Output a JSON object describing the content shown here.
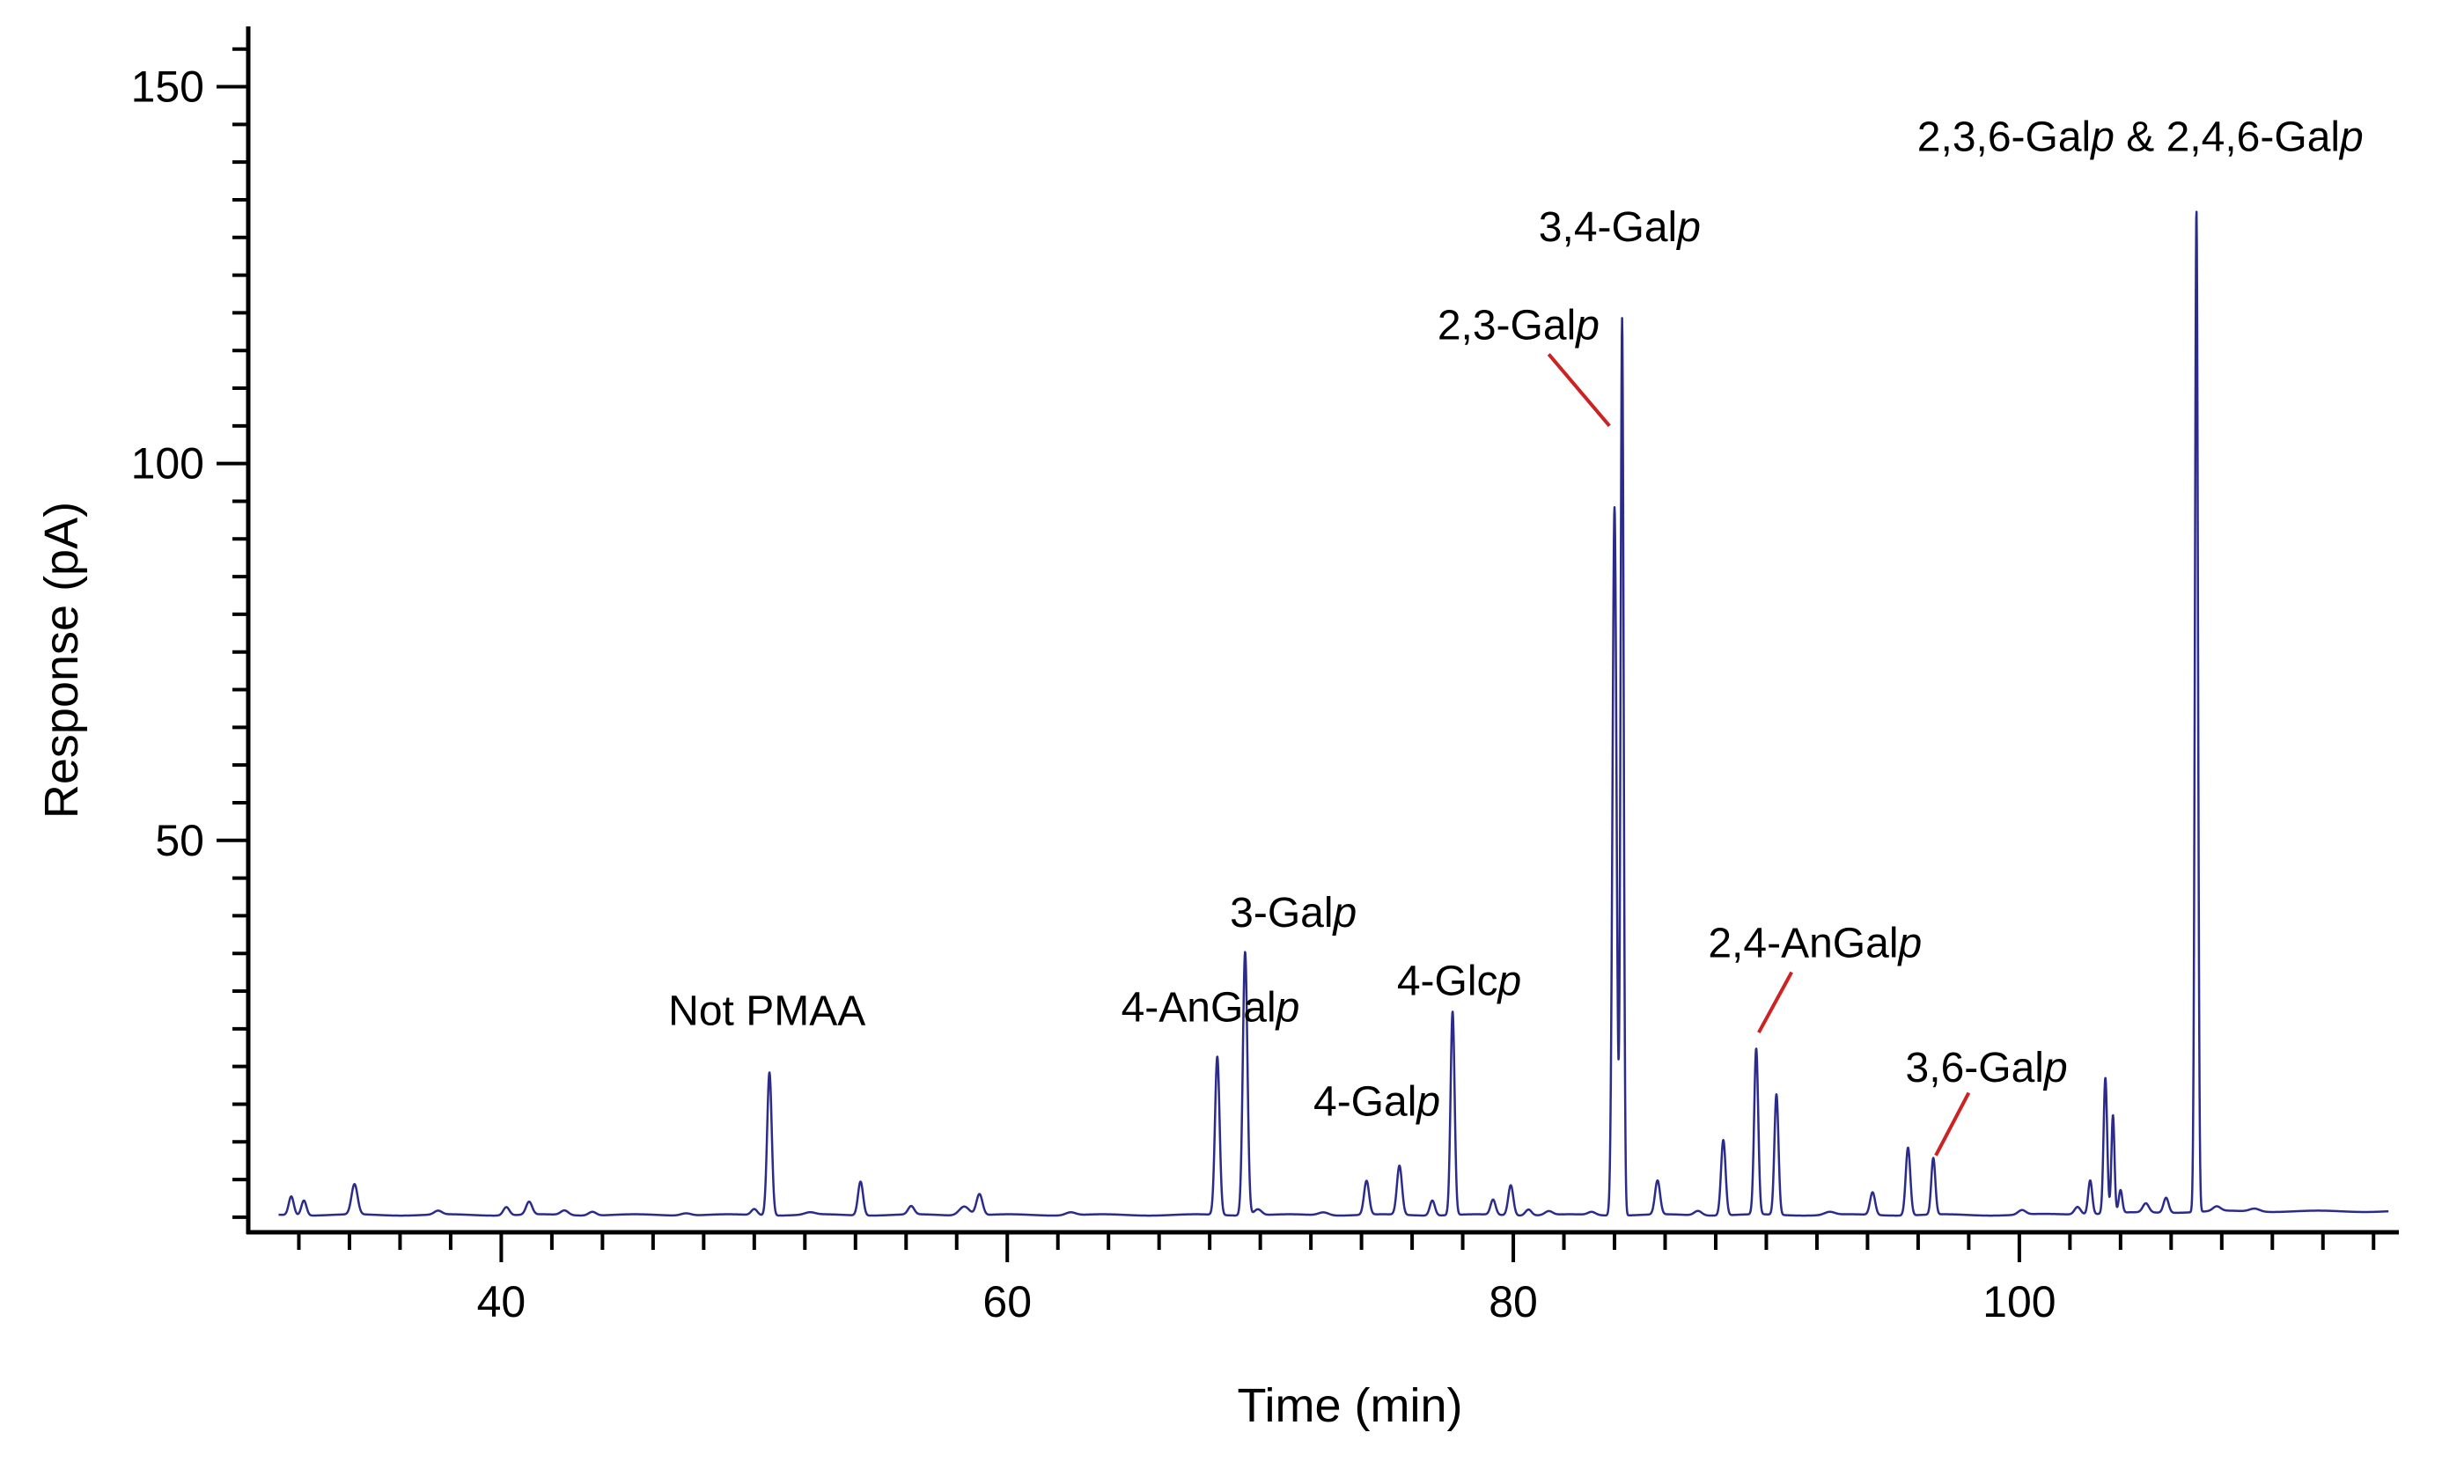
{
  "chart_data": {
    "type": "line",
    "xlabel": "Time (min)",
    "ylabel": "Response (pA)",
    "xlim": [
      30,
      115
    ],
    "ylim": [
      -2,
      158
    ],
    "x_ticks": [
      40,
      60,
      80,
      100
    ],
    "y_ticks": [
      50,
      100,
      150
    ],
    "x_minor_step": 2,
    "y_minor_step": 5,
    "grid": false,
    "line_color": "#2b2b8c",
    "leader_color": "#cc2222",
    "baseline": 0.3,
    "peaks": [
      {
        "x": 31.7,
        "h": 2.5,
        "w": 0.1
      },
      {
        "x": 32.2,
        "h": 2.0,
        "w": 0.1
      },
      {
        "x": 34.2,
        "h": 4.0,
        "w": 0.12
      },
      {
        "x": 37.5,
        "h": 0.5,
        "w": 0.15
      },
      {
        "x": 40.2,
        "h": 1.1,
        "w": 0.12
      },
      {
        "x": 41.1,
        "h": 1.7,
        "w": 0.12
      },
      {
        "x": 42.5,
        "h": 0.6,
        "w": 0.15
      },
      {
        "x": 43.6,
        "h": 0.5,
        "w": 0.15
      },
      {
        "x": 47.3,
        "h": 0.3,
        "w": 0.2
      },
      {
        "x": 50.0,
        "h": 0.8,
        "w": 0.12
      },
      {
        "x": 50.6,
        "h": 19.0,
        "w": 0.09
      },
      {
        "x": 52.2,
        "h": 0.3,
        "w": 0.2
      },
      {
        "x": 54.2,
        "h": 4.5,
        "w": 0.1
      },
      {
        "x": 56.2,
        "h": 1.1,
        "w": 0.12
      },
      {
        "x": 58.3,
        "h": 1.2,
        "w": 0.2
      },
      {
        "x": 58.9,
        "h": 2.8,
        "w": 0.12
      },
      {
        "x": 62.5,
        "h": 0.4,
        "w": 0.2
      },
      {
        "x": 68.3,
        "h": 21.0,
        "w": 0.09
      },
      {
        "x": 69.4,
        "h": 35.0,
        "w": 0.09
      },
      {
        "x": 69.9,
        "h": 0.8,
        "w": 0.15
      },
      {
        "x": 72.5,
        "h": 0.4,
        "w": 0.2
      },
      {
        "x": 74.2,
        "h": 4.5,
        "w": 0.1
      },
      {
        "x": 75.5,
        "h": 6.5,
        "w": 0.1
      },
      {
        "x": 76.8,
        "h": 2.0,
        "w": 0.1
      },
      {
        "x": 77.6,
        "h": 27.0,
        "w": 0.08
      },
      {
        "x": 79.2,
        "h": 2.0,
        "w": 0.1
      },
      {
        "x": 79.9,
        "h": 4.0,
        "w": 0.1
      },
      {
        "x": 80.6,
        "h": 0.8,
        "w": 0.12
      },
      {
        "x": 81.4,
        "h": 0.5,
        "w": 0.15
      },
      {
        "x": 83.1,
        "h": 0.4,
        "w": 0.15
      },
      {
        "x": 84.0,
        "h": 94.0,
        "w": 0.08
      },
      {
        "x": 84.3,
        "h": 119.0,
        "w": 0.06
      },
      {
        "x": 85.7,
        "h": 4.5,
        "w": 0.1
      },
      {
        "x": 87.3,
        "h": 0.6,
        "w": 0.15
      },
      {
        "x": 88.3,
        "h": 10.0,
        "w": 0.09
      },
      {
        "x": 89.6,
        "h": 22.0,
        "w": 0.08
      },
      {
        "x": 90.4,
        "h": 16.0,
        "w": 0.08
      },
      {
        "x": 92.5,
        "h": 0.4,
        "w": 0.2
      },
      {
        "x": 94.2,
        "h": 3.0,
        "w": 0.1
      },
      {
        "x": 95.6,
        "h": 9.0,
        "w": 0.09
      },
      {
        "x": 96.6,
        "h": 7.5,
        "w": 0.08
      },
      {
        "x": 100.1,
        "h": 0.6,
        "w": 0.15
      },
      {
        "x": 102.3,
        "h": 1.0,
        "w": 0.12
      },
      {
        "x": 102.8,
        "h": 4.5,
        "w": 0.08
      },
      {
        "x": 103.4,
        "h": 18.0,
        "w": 0.07
      },
      {
        "x": 103.7,
        "h": 13.0,
        "w": 0.06
      },
      {
        "x": 104.0,
        "h": 3.0,
        "w": 0.07
      },
      {
        "x": 105.0,
        "h": 1.2,
        "w": 0.12
      },
      {
        "x": 105.8,
        "h": 2.0,
        "w": 0.1
      },
      {
        "x": 107.0,
        "h": 133.0,
        "w": 0.06
      },
      {
        "x": 107.8,
        "h": 0.6,
        "w": 0.15
      },
      {
        "x": 109.3,
        "h": 0.4,
        "w": 0.2
      }
    ],
    "annotations": [
      {
        "id": "not-pmaa",
        "parts": [
          {
            "t": "Not PMAA",
            "i": false
          }
        ],
        "x": 50.5,
        "y": 25.5,
        "anchor": "middle"
      },
      {
        "id": "4-angalp",
        "parts": [
          {
            "t": "4-AnGal",
            "i": false
          },
          {
            "t": "p",
            "i": true
          }
        ],
        "x": 64.5,
        "y": 26.0,
        "anchor": "start"
      },
      {
        "id": "3-galp",
        "parts": [
          {
            "t": "3-Gal",
            "i": false
          },
          {
            "t": "p",
            "i": true
          }
        ],
        "x": 68.8,
        "y": 38.5,
        "anchor": "start"
      },
      {
        "id": "4-galp",
        "parts": [
          {
            "t": "4-Gal",
            "i": false
          },
          {
            "t": "p",
            "i": true
          }
        ],
        "x": 72.1,
        "y": 13.5,
        "anchor": "start"
      },
      {
        "id": "4-glcp",
        "parts": [
          {
            "t": "4-Glc",
            "i": false
          },
          {
            "t": "p",
            "i": true
          }
        ],
        "x": 75.4,
        "y": 29.5,
        "anchor": "start"
      },
      {
        "id": "2-3-galp",
        "parts": [
          {
            "t": "2,3-Gal",
            "i": false
          },
          {
            "t": "p",
            "i": true
          }
        ],
        "x": 77.0,
        "y": 116.5,
        "anchor": "start"
      },
      {
        "id": "3-4-galp",
        "parts": [
          {
            "t": "3,4-Gal",
            "i": false
          },
          {
            "t": "p",
            "i": true
          }
        ],
        "x": 81.0,
        "y": 129.5,
        "anchor": "start"
      },
      {
        "id": "2-4-angalp",
        "parts": [
          {
            "t": "2,4-AnGal",
            "i": false
          },
          {
            "t": "p",
            "i": true
          }
        ],
        "x": 87.7,
        "y": 34.5,
        "anchor": "start"
      },
      {
        "id": "3-6-galp",
        "parts": [
          {
            "t": "3,6-Gal",
            "i": false
          },
          {
            "t": "p",
            "i": true
          }
        ],
        "x": 95.5,
        "y": 18.0,
        "anchor": "start"
      },
      {
        "id": "2-3-6-galp-2-4-6-galp",
        "parts": [
          {
            "t": "2,3,6-Gal",
            "i": false
          },
          {
            "t": "p",
            "i": true
          },
          {
            "t": " & 2,4,6-Gal",
            "i": false
          },
          {
            "t": "p",
            "i": true
          }
        ],
        "x": 113.6,
        "y": 141.5,
        "anchor": "end"
      }
    ],
    "leaders": [
      {
        "for": "2-3-galp",
        "x1": 81.4,
        "y1": 114.5,
        "x2": 83.8,
        "y2": 105.0
      },
      {
        "for": "2-4-angalp",
        "x1": 91.0,
        "y1": 32.5,
        "x2": 89.7,
        "y2": 24.5
      },
      {
        "for": "3-6-galp",
        "x1": 98.0,
        "y1": 16.5,
        "x2": 96.7,
        "y2": 8.2
      }
    ]
  }
}
